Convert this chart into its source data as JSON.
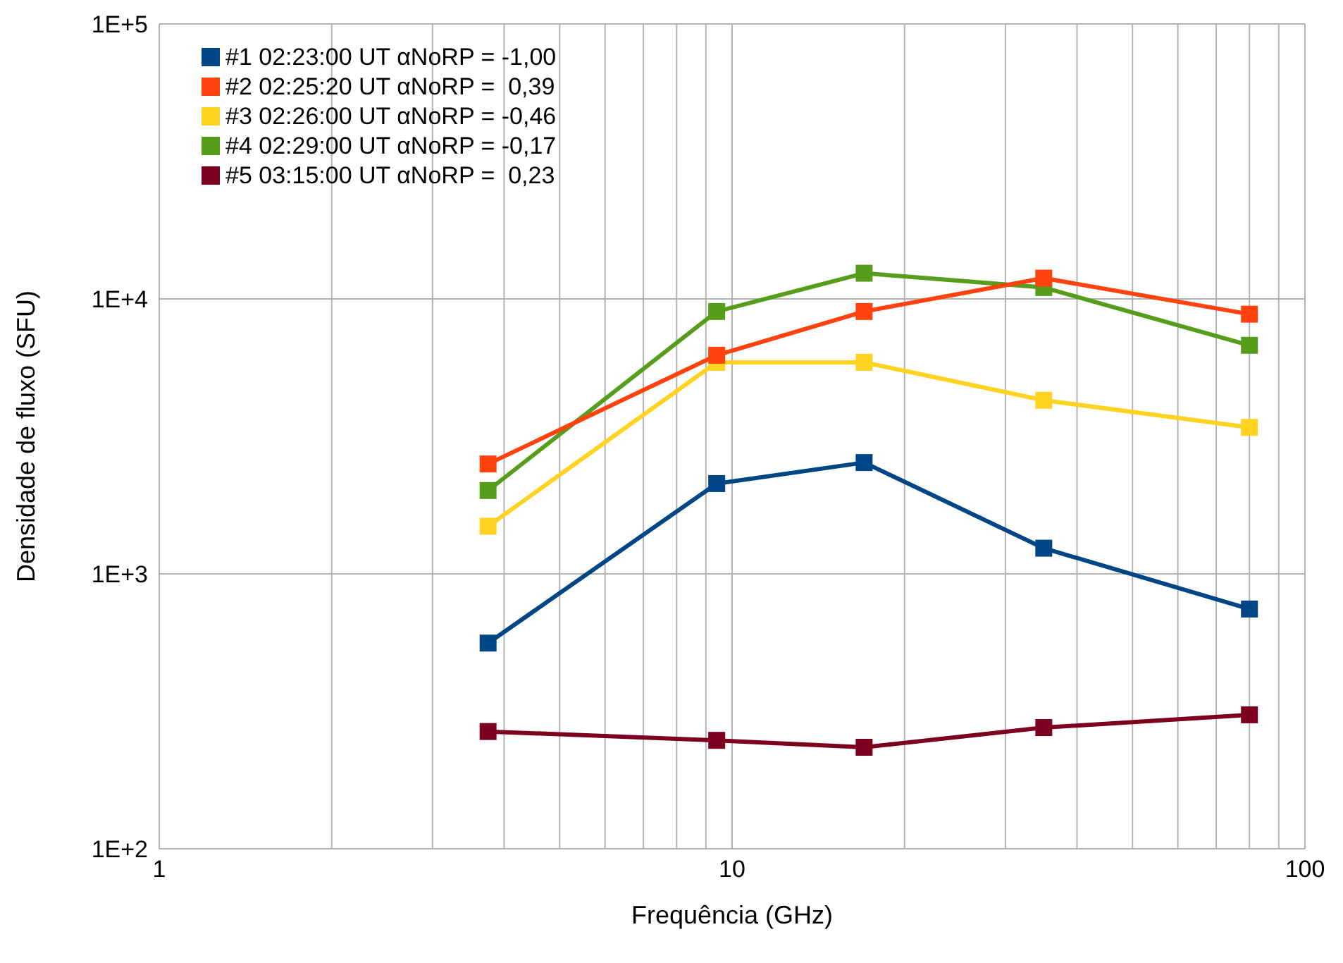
{
  "chart_data": {
    "type": "line",
    "xlabel": "Frequência (GHz)",
    "ylabel": "Densidade de fluxo (SFU)",
    "log": "xy",
    "grid": true,
    "legend": "top left",
    "marker": "square",
    "line_style": "solid",
    "x": [
      3.75,
      9.4,
      17,
      35,
      80
    ],
    "xlim": [
      1,
      100
    ],
    "xticks": [
      1,
      {
        "value": 2,
        "label": null
      },
      {
        "value": 3,
        "label": null
      },
      {
        "value": 4,
        "label": null
      },
      {
        "value": 5,
        "label": null
      },
      {
        "value": 6,
        "label": null
      },
      {
        "value": 7,
        "label": null
      },
      {
        "value": 8,
        "label": null
      },
      {
        "value": 9,
        "label": null
      },
      10,
      {
        "value": 20,
        "label": null
      },
      {
        "value": 30,
        "label": null
      },
      {
        "value": 40,
        "label": null
      },
      {
        "value": 50,
        "label": null
      },
      {
        "value": 60,
        "label": null
      },
      {
        "value": 70,
        "label": null
      },
      {
        "value": 80,
        "label": null
      },
      {
        "value": 90,
        "label": null
      },
      100
    ],
    "ylim": [
      100,
      100000
    ],
    "yticks": [
      {
        "value": 100,
        "label": "1E+2"
      },
      {
        "value": 1000,
        "label": "1E+3"
      },
      {
        "value": 10000,
        "label": "1E+4"
      },
      {
        "value": 100000,
        "label": "1E+5"
      }
    ],
    "series": [
      {
        "name": "#1 02:23:00 UT αNoRP = -1,00",
        "color": "#004586",
        "values": [
          560,
          2130,
          2540,
          1240,
          745
        ]
      },
      {
        "name": "#2 02:25:20 UT αNoRP =  0,39",
        "color": "#ff420e",
        "values": [
          2510,
          6240,
          9000,
          11900,
          8800
        ]
      },
      {
        "name": "#3 02:26:00 UT αNoRP = -0,46",
        "color": "#ffd320",
        "values": [
          1490,
          5880,
          5880,
          4280,
          3410
        ]
      },
      {
        "name": "#4 02:29:00 UT αNoRP = -0,17",
        "color": "#579d1c",
        "values": [
          2010,
          9000,
          12400,
          11000,
          6780
        ]
      },
      {
        "name": "#5 03:15:00 UT αNoRP =  0,23",
        "color": "#7e0021",
        "values": [
          267,
          248,
          234,
          276,
          307
        ]
      }
    ]
  }
}
